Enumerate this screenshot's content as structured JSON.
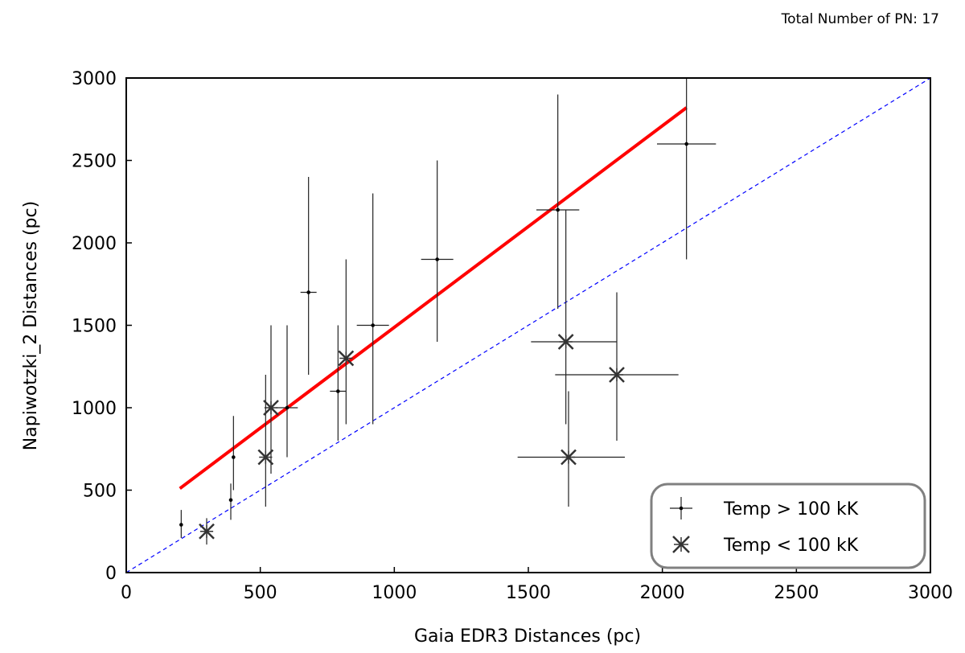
{
  "header_note": "Total Number of PN: 17",
  "chart_data": {
    "type": "scatter",
    "xlabel": "Gaia EDR3 Distances (pc)",
    "ylabel": "Napiwotzki_2 Distances (pc)",
    "xlim": [
      0,
      3000
    ],
    "ylim": [
      0,
      3000
    ],
    "x_ticks": [
      0,
      500,
      1000,
      1500,
      2000,
      2500,
      3000
    ],
    "y_ticks": [
      0,
      500,
      1000,
      1500,
      2000,
      2500,
      3000
    ],
    "grid": false,
    "legend_position": "bottom-right",
    "series": [
      {
        "name": "Temp > 100 kK",
        "marker": "plus",
        "color": "#000000",
        "points": [
          {
            "x": 205,
            "y": 290,
            "y_err": [
              80,
              90
            ]
          },
          {
            "x": 390,
            "y": 440,
            "y_err": [
              120,
              100
            ]
          },
          {
            "x": 400,
            "y": 700,
            "y_err": [
              200,
              250
            ]
          },
          {
            "x": 600,
            "y": 1000,
            "x_err": [
              40,
              40
            ],
            "y_err": [
              300,
              500
            ]
          },
          {
            "x": 680,
            "y": 1700,
            "x_err": [
              30,
              30
            ],
            "y_err": [
              500,
              700
            ]
          },
          {
            "x": 790,
            "y": 1100,
            "x_err": [
              30,
              30
            ],
            "y_err": [
              300,
              400
            ]
          },
          {
            "x": 920,
            "y": 1500,
            "x_err": [
              60,
              60
            ],
            "y_err": [
              600,
              800
            ]
          },
          {
            "x": 1160,
            "y": 1900,
            "x_err": [
              60,
              60
            ],
            "y_err": [
              500,
              600
            ]
          },
          {
            "x": 1610,
            "y": 2200,
            "x_err": [
              80,
              80
            ],
            "y_err": [
              600,
              700
            ]
          },
          {
            "x": 2090,
            "y": 2600,
            "x_err": [
              110,
              110
            ],
            "y_err": [
              700,
              400
            ]
          }
        ]
      },
      {
        "name": "Temp < 100 kK",
        "marker": "star",
        "color": "#000000",
        "points": [
          {
            "x": 300,
            "y": 250,
            "y_err": [
              80,
              80
            ]
          },
          {
            "x": 520,
            "y": 700,
            "y_err": [
              300,
              500
            ]
          },
          {
            "x": 540,
            "y": 1000,
            "y_err": [
              400,
              500
            ]
          },
          {
            "x": 820,
            "y": 1300,
            "y_err": [
              400,
              600
            ]
          },
          {
            "x": 1640,
            "y": 1400,
            "x_err": [
              130,
              190
            ],
            "y_err": [
              500,
              800
            ]
          },
          {
            "x": 1650,
            "y": 700,
            "x_err": [
              190,
              210
            ],
            "y_err": [
              300,
              400
            ]
          },
          {
            "x": 1830,
            "y": 1200,
            "x_err": [
              230,
              230
            ],
            "y_err": [
              400,
              500
            ]
          }
        ]
      }
    ],
    "lines": [
      {
        "style": "solid",
        "color": "#ff0000",
        "x": [
          200,
          2090
        ],
        "y": [
          510,
          2820
        ]
      },
      {
        "style": "dashed",
        "color": "#0000ff",
        "x": [
          0,
          3000
        ],
        "y": [
          0,
          3000
        ]
      }
    ]
  }
}
